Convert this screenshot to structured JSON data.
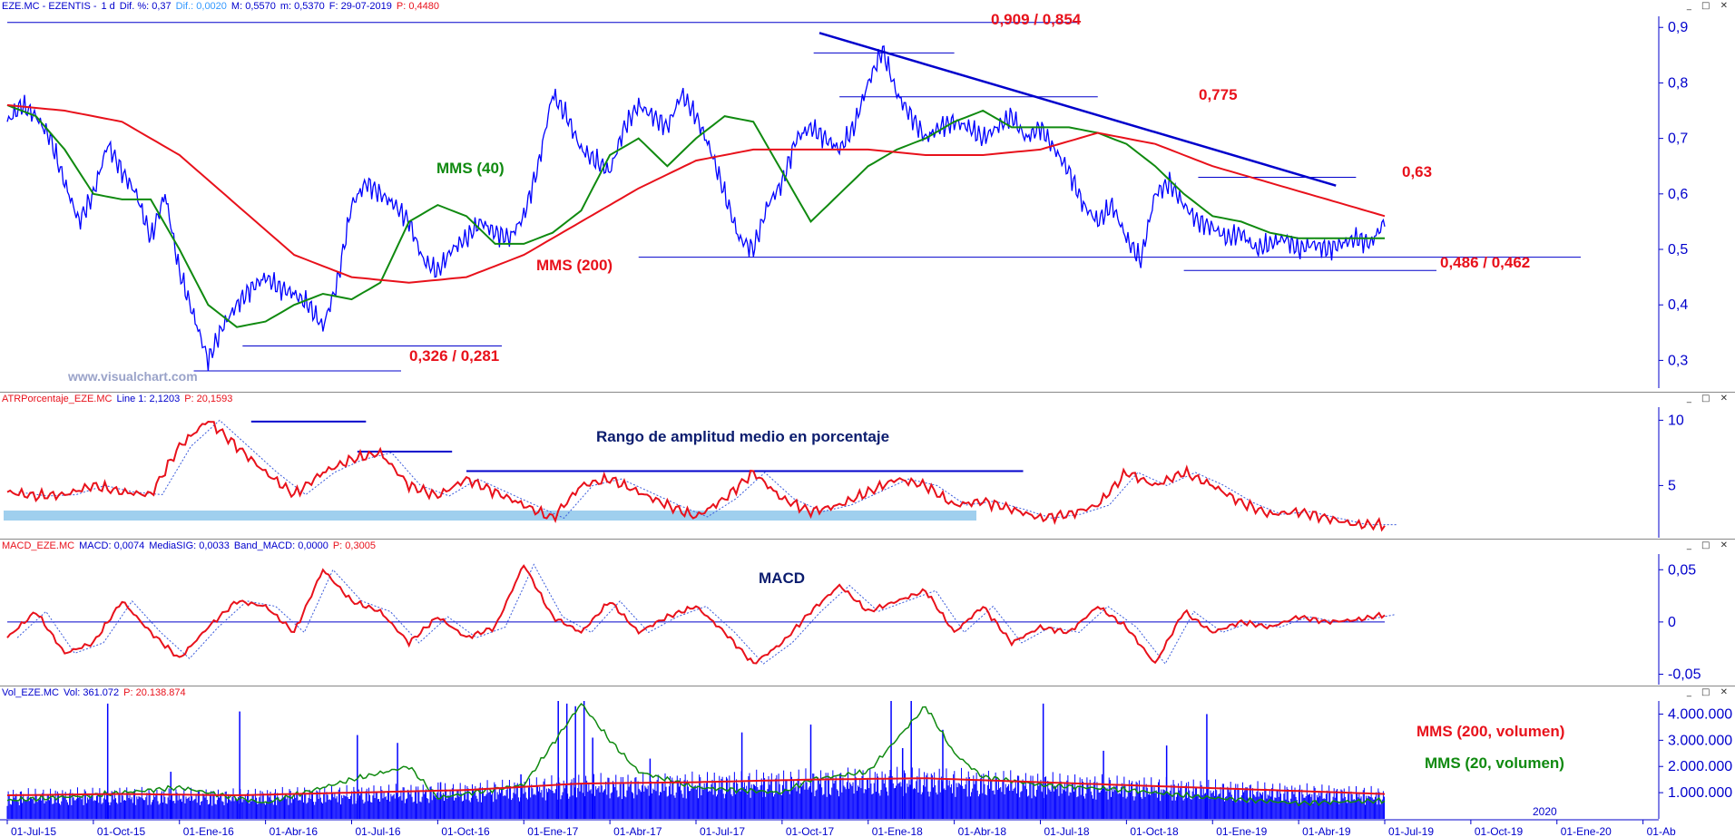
{
  "colors": {
    "price": "#0000ff",
    "mms200": "#e8111b",
    "mms40": "#108a10",
    "axis": "#0000cc",
    "atr_band": "#9fcfee"
  },
  "header_price": {
    "symbol": "EZE.MC - EZENTIS -",
    "period": "1 d",
    "dif_pct": "Dif. %: 0,37",
    "dif": "Dif.: 0,0020",
    "max": "M: 0,5570",
    "min": "m: 0,5370",
    "date": "F: 29-07-2019",
    "last": "P: 0,4480"
  },
  "header_atr": {
    "name": "ATRPorcentaje_EZE.MC",
    "line": "Line 1: 2,1203",
    "last": "P: 20,1593"
  },
  "header_macd": {
    "name": "MACD_EZE.MC",
    "macd": "MACD: 0,0074",
    "sig": "MediaSIG: 0,0033",
    "band": "Band_MACD: 0,0000",
    "last": "P: 0,3005"
  },
  "header_vol": {
    "name": "Vol_EZE.MC",
    "vol": "Vol: 361.072",
    "last": "P: 20.138.874"
  },
  "window_buttons": "_ □ ✕",
  "watermark": "www.visualchart.com",
  "annotations": {
    "high_label": "0,909 / 0,854",
    "r1": "0,775",
    "r2": "0,63",
    "support": "0,486 / 0,462",
    "low_label": "0,326 / 0,281",
    "mms40": "MMS (40)",
    "mms200": "MMS (200)",
    "atr_title": "Rango de amplitud medio en porcentaje",
    "macd_title": "MACD",
    "vol_mms200": "MMS (200, volumen)",
    "vol_mms20": "MMS (20, volumen)",
    "year_marker": "2020"
  },
  "chart_data": [
    {
      "type": "line",
      "title": "EZE.MC - EZENTIS",
      "x_range": [
        "01-Jul-15",
        "01-Abr-20"
      ],
      "ylim": [
        0.25,
        0.92
      ],
      "y_ticks": [
        "0,9",
        "0,8",
        "0,7",
        "0,6",
        "0,5",
        "0,4",
        "0,3"
      ],
      "y_tick_values": [
        0.9,
        0.8,
        0.7,
        0.6,
        0.5,
        0.4,
        0.3
      ],
      "x_tick_labels": [
        "01-Jul-15",
        "01-Oct-15",
        "01-Ene-16",
        "01-Abr-16",
        "01-Jul-16",
        "01-Oct-16",
        "01-Ene-17",
        "01-Abr-17",
        "01-Jul-17",
        "01-Oct-17",
        "01-Ene-18",
        "01-Abr-18",
        "01-Jul-18",
        "01-Oct-18",
        "01-Ene-19",
        "01-Abr-19",
        "01-Jul-19",
        "01-Oct-19",
        "01-Ene-20",
        "01-Ab"
      ],
      "x_month_index": [
        0,
        3,
        6,
        9,
        12,
        15,
        18,
        21,
        24,
        27,
        30,
        33,
        36,
        39,
        42,
        45,
        48,
        51,
        54,
        57
      ],
      "series": [
        {
          "name": "Precio",
          "months": [
            0,
            0.5,
            1,
            1.5,
            2,
            2.5,
            3,
            3.5,
            4,
            4.5,
            5,
            5.5,
            6,
            6.5,
            7,
            7.5,
            8,
            8.5,
            9,
            9.5,
            10,
            10.5,
            11,
            11.5,
            12,
            12.5,
            13,
            13.5,
            14,
            14.5,
            15,
            15.5,
            16,
            16.5,
            17,
            17.5,
            18,
            18.5,
            19,
            19.5,
            20,
            20.5,
            21,
            21.5,
            22,
            22.5,
            23,
            23.5,
            24,
            24.5,
            25,
            25.5,
            26,
            26.5,
            27,
            27.5,
            28,
            28.5,
            29,
            29.5,
            30,
            30.5,
            31,
            31.5,
            32,
            32.5,
            33,
            33.5,
            34,
            34.5,
            35,
            35.5,
            36,
            36.5,
            37,
            37.5,
            38,
            38.5,
            39,
            39.5,
            40,
            40.5,
            41,
            41.5,
            42,
            42.5,
            43,
            43.5,
            44,
            44.5,
            45,
            45.5,
            46,
            46.5,
            47,
            47.5,
            48
          ],
          "values": [
            0.73,
            0.76,
            0.74,
            0.7,
            0.62,
            0.55,
            0.6,
            0.69,
            0.64,
            0.6,
            0.52,
            0.6,
            0.46,
            0.38,
            0.3,
            0.36,
            0.4,
            0.43,
            0.45,
            0.43,
            0.42,
            0.4,
            0.36,
            0.44,
            0.58,
            0.62,
            0.6,
            0.58,
            0.55,
            0.48,
            0.46,
            0.5,
            0.52,
            0.55,
            0.53,
            0.52,
            0.56,
            0.65,
            0.78,
            0.74,
            0.68,
            0.66,
            0.64,
            0.72,
            0.76,
            0.74,
            0.72,
            0.78,
            0.74,
            0.68,
            0.6,
            0.52,
            0.5,
            0.58,
            0.62,
            0.7,
            0.72,
            0.7,
            0.68,
            0.72,
            0.8,
            0.86,
            0.78,
            0.74,
            0.7,
            0.72,
            0.73,
            0.72,
            0.7,
            0.72,
            0.74,
            0.7,
            0.72,
            0.68,
            0.64,
            0.58,
            0.55,
            0.58,
            0.52,
            0.48,
            0.6,
            0.62,
            0.58,
            0.55,
            0.54,
            0.52,
            0.53,
            0.5,
            0.51,
            0.52,
            0.5,
            0.51,
            0.5,
            0.51,
            0.52,
            0.51,
            0.55
          ]
        },
        {
          "name": "MMS (40)",
          "months": [
            0,
            1,
            2,
            3,
            4,
            5,
            6,
            7,
            8,
            9,
            10,
            11,
            12,
            13,
            14,
            15,
            16,
            17,
            18,
            19,
            20,
            21,
            22,
            23,
            24,
            25,
            26,
            27,
            28,
            29,
            30,
            31,
            32,
            33,
            34,
            35,
            36,
            37,
            38,
            39,
            40,
            41,
            42,
            43,
            44,
            45,
            46,
            47,
            48
          ],
          "values": [
            0.76,
            0.74,
            0.68,
            0.6,
            0.59,
            0.59,
            0.5,
            0.4,
            0.36,
            0.37,
            0.4,
            0.42,
            0.41,
            0.44,
            0.55,
            0.58,
            0.56,
            0.51,
            0.51,
            0.53,
            0.57,
            0.67,
            0.7,
            0.65,
            0.7,
            0.74,
            0.73,
            0.64,
            0.55,
            0.6,
            0.65,
            0.68,
            0.7,
            0.73,
            0.75,
            0.72,
            0.72,
            0.72,
            0.71,
            0.69,
            0.65,
            0.6,
            0.56,
            0.55,
            0.53,
            0.52,
            0.52,
            0.52,
            0.52
          ]
        },
        {
          "name": "MMS (200)",
          "months": [
            0,
            2,
            4,
            6,
            8,
            10,
            12,
            14,
            16,
            18,
            20,
            22,
            24,
            26,
            28,
            30,
            32,
            34,
            36,
            38,
            40,
            42,
            44,
            46,
            48
          ],
          "values": [
            0.76,
            0.75,
            0.73,
            0.67,
            0.58,
            0.49,
            0.45,
            0.44,
            0.45,
            0.49,
            0.55,
            0.61,
            0.66,
            0.68,
            0.68,
            0.68,
            0.67,
            0.67,
            0.68,
            0.71,
            0.69,
            0.65,
            0.62,
            0.59,
            0.56
          ]
        }
      ],
      "trendline": {
        "from": [
          28.3,
          0.89
        ],
        "to": [
          46.3,
          0.615
        ]
      },
      "levels": [
        0.909,
        0.854,
        0.775,
        0.63,
        0.486,
        0.462,
        0.326,
        0.281
      ]
    },
    {
      "type": "line",
      "title": "ATRPorcentaje_EZE.MC",
      "ylim": [
        1,
        11
      ],
      "y_ticks": [
        "10",
        "5"
      ],
      "y_tick_values": [
        10,
        5
      ],
      "series": [
        {
          "name": "ATR %",
          "months": [
            0,
            1,
            2,
            3,
            4,
            5,
            6,
            7,
            8,
            9,
            10,
            11,
            12,
            13,
            14,
            15,
            16,
            17,
            18,
            19,
            20,
            21,
            22,
            23,
            24,
            25,
            26,
            27,
            28,
            29,
            30,
            31,
            32,
            33,
            34,
            35,
            36,
            37,
            38,
            39,
            40,
            41,
            42,
            43,
            44,
            45,
            46,
            47,
            48
          ],
          "values": [
            4.5,
            4.2,
            4.3,
            5,
            4.5,
            4.3,
            8,
            10,
            8,
            6,
            4.3,
            6,
            7,
            7.5,
            5,
            4.2,
            5.5,
            4.5,
            3.5,
            2.5,
            5,
            5.5,
            4.5,
            3.5,
            2.6,
            4,
            6,
            4,
            3,
            3.5,
            4.5,
            5.5,
            5,
            3.5,
            3.8,
            3.2,
            2.5,
            2.8,
            3.5,
            6,
            5,
            6,
            5,
            3.7,
            2.8,
            3,
            2.5,
            2,
            2
          ]
        }
      ]
    },
    {
      "type": "line",
      "title": "MACD_EZE.MC",
      "ylim": [
        -0.06,
        0.065
      ],
      "y_ticks": [
        "0,05",
        "0",
        "-0,05"
      ],
      "y_tick_values": [
        0.05,
        0,
        -0.05
      ],
      "series": [
        {
          "name": "MACD",
          "months": [
            0,
            1,
            2,
            3,
            4,
            5,
            6,
            7,
            8,
            9,
            10,
            11,
            12,
            13,
            14,
            15,
            16,
            17,
            18,
            19,
            20,
            21,
            22,
            23,
            24,
            25,
            26,
            27,
            28,
            29,
            30,
            31,
            32,
            33,
            34,
            35,
            36,
            37,
            38,
            39,
            40,
            41,
            42,
            43,
            44,
            45,
            46,
            47,
            48
          ],
          "values": [
            -0.015,
            0.01,
            -0.03,
            -0.02,
            0.02,
            -0.01,
            -0.035,
            -0.005,
            0.02,
            0.015,
            -0.01,
            0.05,
            0.02,
            0.01,
            -0.02,
            0.005,
            -0.015,
            -0.005,
            0.055,
            0.005,
            -0.01,
            0.02,
            -0.01,
            0.005,
            0.015,
            -0.01,
            -0.04,
            -0.02,
            0.01,
            0.035,
            0.01,
            0.02,
            0.03,
            -0.01,
            0.015,
            -0.02,
            -0.005,
            -0.01,
            0.015,
            -0.005,
            -0.04,
            0.01,
            -0.01,
            0,
            -0.005,
            0.005,
            0,
            0.002,
            0.007
          ]
        }
      ]
    },
    {
      "type": "bar",
      "title": "Vol_EZE.MC",
      "ylim": [
        0,
        4500000
      ],
      "y_ticks": [
        "4.000.000",
        "3.000.000",
        "2.000.000",
        "1.000.000"
      ],
      "y_tick_values": [
        4000000,
        3000000,
        2000000,
        1000000
      ],
      "series": [
        {
          "name": "MMS (200, volumen)",
          "months": [
            0,
            4,
            8,
            12,
            16,
            20,
            24,
            28,
            32,
            36,
            40,
            44,
            48
          ],
          "values": [
            900000,
            950000,
            900000,
            1000000,
            1100000,
            1350000,
            1400000,
            1500000,
            1550000,
            1400000,
            1250000,
            1100000,
            950000
          ]
        },
        {
          "name": "MMS (20, volumen)",
          "months": [
            0,
            3,
            6,
            9,
            12,
            14,
            15,
            18,
            20,
            21,
            22,
            24,
            27,
            28,
            30,
            32,
            33,
            34,
            36,
            39,
            42,
            45,
            48
          ],
          "values": [
            700000,
            900000,
            1200000,
            600000,
            1500000,
            2000000,
            800000,
            1300000,
            4400000,
            3000000,
            1800000,
            1200000,
            1000000,
            1500000,
            1800000,
            4300000,
            2500000,
            1600000,
            1300000,
            1100000,
            800000,
            600000,
            700000
          ]
        }
      ],
      "spikes_months": [
        3.5,
        5.7,
        8.1,
        12.2,
        13.6,
        15.1,
        17.9,
        19.2,
        19.5,
        19.8,
        20.1,
        20.4,
        22.4,
        25.6,
        26.3,
        28.0,
        30.8,
        31.2,
        31.5,
        32.6,
        36.1,
        38.2,
        40.4,
        41.8,
        43.2
      ],
      "spikes_values": [
        4400000,
        1800000,
        4100000,
        3200000,
        2900000,
        1400000,
        1700000,
        4500000,
        4400000,
        4300000,
        4500000,
        3100000,
        2300000,
        3300000,
        1300000,
        3600000,
        4500000,
        2700000,
        4500000,
        3400000,
        4400000,
        2600000,
        2800000,
        4000000,
        1200000
      ]
    }
  ]
}
